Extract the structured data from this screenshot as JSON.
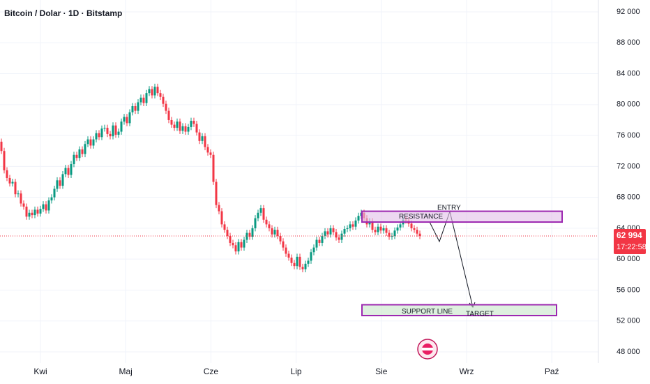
{
  "chart_data": {
    "type": "candlestick",
    "title": "Bitcoin / Dolar · 1D · Bitstamp",
    "x_labels": [
      "Kwi",
      "Maj",
      "Cze",
      "Lip",
      "Sie",
      "Wrz",
      "Paź"
    ],
    "up_color": "#089981",
    "down_color": "#f23645",
    "ylim": [
      48000,
      92000
    ],
    "yticks": [
      {
        "value": 48000,
        "label": "48 000"
      },
      {
        "value": 52000,
        "label": "52 000"
      },
      {
        "value": 56000,
        "label": "56 000"
      },
      {
        "value": 60000,
        "label": "60 000"
      },
      {
        "value": 64000,
        "label": "64 000"
      },
      {
        "value": 68000,
        "label": "68 000"
      },
      {
        "value": 72000,
        "label": "72 000"
      },
      {
        "value": 76000,
        "label": "76 000"
      },
      {
        "value": 80000,
        "label": "80 000"
      },
      {
        "value": 84000,
        "label": "84 000"
      },
      {
        "value": 88000,
        "label": "88 000"
      },
      {
        "value": 92000,
        "label": "92 000"
      }
    ],
    "grid": true,
    "open": [
      75200,
      74000,
      71500,
      70500,
      69800,
      70000,
      68400,
      68500,
      67200,
      66800,
      65500,
      66000,
      65700,
      66400,
      65900,
      66500,
      67100,
      66300,
      67600,
      68000,
      69100,
      70200,
      69500,
      71000,
      71800,
      70900,
      72300,
      73500,
      73100,
      74200,
      73600,
      74900,
      75500,
      74700,
      75500,
      76300,
      75800,
      76900,
      77000,
      76200,
      75900,
      77300,
      76100,
      76500,
      77800,
      78400,
      77600,
      79000,
      79800,
      79200,
      80300,
      80900,
      80200,
      81500,
      82000,
      81200,
      82300,
      81500,
      81000,
      80100,
      79200,
      78000,
      77400,
      77000,
      77800,
      76600,
      77200,
      76500,
      77100,
      77900,
      77500,
      76400,
      75300,
      75900,
      74500,
      73800,
      73500,
      70000,
      67000,
      66200,
      64500,
      63800,
      63000,
      62100,
      61800,
      61000,
      62200,
      61500,
      62500,
      63400,
      62900,
      64000,
      65300,
      66000,
      66600,
      65100,
      64500,
      64000,
      63200,
      63800,
      63000,
      62300,
      61500,
      60700,
      60200,
      59500,
      59100,
      60300,
      59000,
      58700,
      59400,
      59800,
      60900,
      61500,
      62500,
      62100,
      63000,
      63600,
      63200,
      64000,
      63500,
      62800,
      62500,
      63300,
      63900,
      64000,
      64500,
      64200,
      65000,
      65600,
      66000,
      65300,
      64500,
      64900,
      63800,
      63500,
      64200,
      63700,
      64000,
      63400,
      62900,
      63000,
      63700,
      64100,
      64500,
      65100,
      65000,
      64600,
      64000,
      63800,
      63300
    ],
    "high": [
      75600,
      74400,
      71900,
      70900,
      70400,
      70400,
      68900,
      68900,
      67600,
      67200,
      66400,
      66400,
      66800,
      66800,
      66900,
      67500,
      67500,
      68000,
      68400,
      69500,
      70600,
      70600,
      71400,
      72200,
      72200,
      72700,
      73900,
      73900,
      74600,
      74600,
      75300,
      75900,
      75900,
      75900,
      76700,
      76700,
      77300,
      77400,
      77400,
      76600,
      77700,
      77700,
      76900,
      78200,
      78800,
      78800,
      79400,
      80200,
      80200,
      80700,
      81300,
      81300,
      81900,
      82400,
      82400,
      82700,
      82700,
      81900,
      81400,
      80500,
      79600,
      78400,
      77800,
      78200,
      78200,
      77600,
      77600,
      77500,
      78300,
      78300,
      77900,
      76800,
      76300,
      76300,
      74900,
      74200,
      73900,
      70400,
      67400,
      66600,
      64900,
      64200,
      63400,
      62500,
      62200,
      62600,
      62600,
      62900,
      63800,
      63800,
      64400,
      65700,
      66400,
      67000,
      67000,
      65500,
      64900,
      64400,
      64200,
      64200,
      63400,
      62700,
      61900,
      61100,
      60600,
      59900,
      60700,
      60700,
      59400,
      59800,
      60200,
      61300,
      61900,
      62900,
      62900,
      63400,
      64000,
      64000,
      64400,
      64400,
      63900,
      63200,
      63700,
      64300,
      64400,
      64900,
      64900,
      65400,
      66000,
      66400,
      66400,
      65700,
      65300,
      65300,
      64200,
      64600,
      64600,
      64400,
      64400,
      63800,
      63400,
      64100,
      64500,
      64900,
      65500,
      65500,
      65400,
      65000,
      64400,
      64200,
      63700
    ],
    "low": [
      73600,
      71100,
      70100,
      69400,
      69400,
      68000,
      68000,
      66800,
      66400,
      65100,
      65100,
      65300,
      65300,
      65500,
      65500,
      66100,
      65900,
      65900,
      67200,
      67600,
      68700,
      69100,
      69100,
      70600,
      70500,
      70500,
      71900,
      72700,
      72700,
      73200,
      73200,
      74500,
      74300,
      74300,
      75100,
      75400,
      75400,
      76500,
      75800,
      75500,
      75500,
      75700,
      75700,
      76100,
      77400,
      77200,
      77200,
      78600,
      78800,
      78800,
      79900,
      79800,
      79800,
      81100,
      80800,
      80800,
      81100,
      80600,
      79700,
      78800,
      77600,
      77000,
      76600,
      76600,
      76200,
      76200,
      76100,
      76100,
      76700,
      77100,
      76000,
      74900,
      74900,
      74100,
      73400,
      73100,
      69600,
      66600,
      65800,
      64100,
      63400,
      62600,
      61700,
      61400,
      60600,
      60600,
      61100,
      61100,
      62100,
      62500,
      62500,
      63600,
      64900,
      65600,
      64700,
      64100,
      63600,
      62800,
      62800,
      62600,
      61900,
      61100,
      60300,
      59800,
      59100,
      58700,
      58700,
      58600,
      58300,
      58300,
      59000,
      59400,
      60500,
      61100,
      61700,
      61700,
      62600,
      62800,
      62800,
      63100,
      62400,
      62100,
      62100,
      62900,
      63500,
      63600,
      63800,
      63800,
      64600,
      65200,
      64900,
      64100,
      64100,
      63400,
      63100,
      63100,
      63300,
      63300,
      63000,
      62500,
      62500,
      62600,
      63300,
      63700,
      64100,
      64600,
      64200,
      63600,
      63400,
      62900,
      62594
    ],
    "close": [
      74000,
      71500,
      70500,
      69800,
      70000,
      68400,
      68500,
      67200,
      66800,
      65500,
      66000,
      65700,
      66400,
      65900,
      66500,
      67100,
      66300,
      67600,
      68000,
      69100,
      70200,
      69500,
      71000,
      71800,
      70900,
      72300,
      73500,
      73100,
      74200,
      73600,
      74900,
      75500,
      74700,
      75500,
      76300,
      75800,
      76900,
      77000,
      76200,
      75900,
      77300,
      76100,
      76500,
      77800,
      78400,
      77600,
      79000,
      79800,
      79200,
      80300,
      80900,
      80200,
      81500,
      82000,
      81200,
      82300,
      81500,
      81000,
      80100,
      79200,
      78000,
      77400,
      77000,
      77800,
      76600,
      77200,
      76500,
      77100,
      77900,
      77500,
      76400,
      75300,
      75900,
      74500,
      73800,
      73500,
      70000,
      67000,
      66200,
      64500,
      63800,
      63000,
      62100,
      61800,
      61000,
      62200,
      61500,
      62500,
      63400,
      62900,
      64000,
      65300,
      66000,
      66600,
      65100,
      64500,
      64000,
      63200,
      63800,
      63000,
      62300,
      61500,
      60700,
      60200,
      59500,
      59100,
      60300,
      59000,
      58700,
      59400,
      59800,
      60900,
      61500,
      62500,
      62100,
      63000,
      63600,
      63200,
      64000,
      63500,
      62800,
      62500,
      63300,
      63900,
      64000,
      64500,
      64200,
      65000,
      65600,
      66000,
      65300,
      64500,
      64900,
      63800,
      63500,
      64200,
      63700,
      64000,
      63400,
      62900,
      63000,
      63700,
      64100,
      64500,
      65100,
      65000,
      64600,
      64000,
      63800,
      63300,
      62994
    ],
    "last_price": {
      "value": 62994,
      "label": "62 994"
    },
    "countdown": "17:22:58",
    "annotations": {
      "resistance": {
        "label": "RESISTANCE",
        "range": [
          64800,
          66200
        ]
      },
      "support": {
        "label": "SUPPORT LINE",
        "range": [
          52700,
          54100
        ]
      },
      "entry": "ENTRY",
      "target": "TARGET"
    }
  }
}
